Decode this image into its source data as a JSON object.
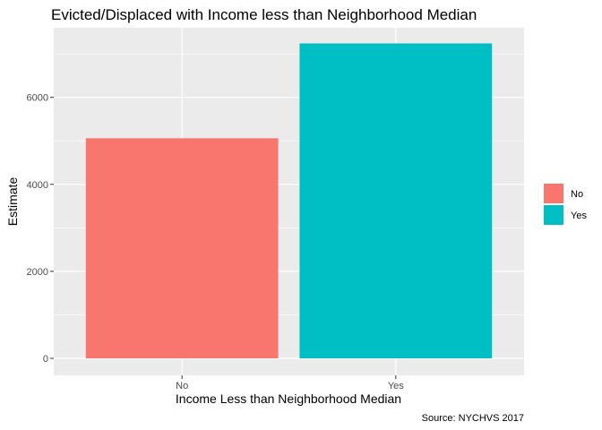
{
  "chart_data": {
    "type": "bar",
    "title": "Evicted/Displaced with Income less than Neighborhood Median",
    "xlabel": "Income Less than Neighborhood Median",
    "ylabel": "Estimate",
    "caption": "Source: NYCHVS 2017",
    "categories": [
      "No",
      "Yes"
    ],
    "values": [
      5060,
      7240
    ],
    "colors": [
      "#F8766D",
      "#00BFC4"
    ],
    "ylim": [
      0,
      7600
    ],
    "yticks": [
      0,
      2000,
      4000,
      6000
    ],
    "ytick_labels": [
      "0",
      "2000",
      "4000",
      "6000"
    ],
    "grid": true,
    "legend": {
      "placement": "right",
      "entries": [
        {
          "label": "No",
          "color": "#F8766D"
        },
        {
          "label": "Yes",
          "color": "#00BFC4"
        }
      ]
    }
  }
}
